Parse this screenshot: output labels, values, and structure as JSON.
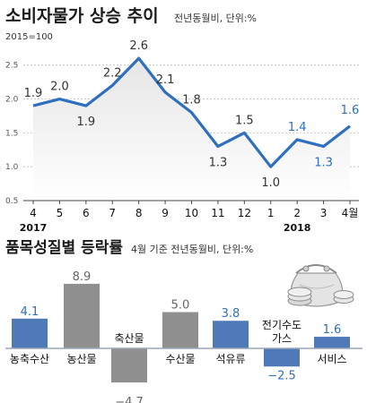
{
  "chart_data": [
    {
      "type": "line",
      "title": "소비자물가 상승 추이",
      "subtitle": "전년동월비, 단위:%",
      "base_note": "2015=100",
      "x": [
        "4",
        "5",
        "6",
        "7",
        "8",
        "9",
        "10",
        "11",
        "12",
        "1",
        "2",
        "3",
        "4월"
      ],
      "year_labels": [
        {
          "text": "2017",
          "at": "4"
        },
        {
          "text": "2018",
          "at": "2"
        }
      ],
      "values": [
        1.9,
        2.0,
        1.9,
        2.2,
        2.6,
        2.1,
        1.8,
        1.3,
        1.5,
        1.0,
        1.4,
        1.3,
        1.6
      ],
      "value_labels": [
        "1.9",
        "2.0",
        "1.9",
        "2.2",
        "2.6",
        "2.1",
        "1.8",
        "1.3",
        "1.5",
        "1.0",
        "1.4",
        "1.3",
        "1.6"
      ],
      "highlight_index": [
        10,
        11,
        12
      ],
      "yticks": [
        "2.5",
        "2.0",
        "1.5",
        "1.0",
        "0.5"
      ],
      "ylim": [
        0.5,
        2.8
      ],
      "grid": "horizontal-dashed",
      "colors": {
        "line": "#2f6fc0",
        "area_top": "#ececec",
        "area_bottom": "#ffffff"
      }
    },
    {
      "type": "bar",
      "title": "품목성질별 등락률",
      "subtitle": "4월 기준 전년동월비, 단위:%",
      "categories": [
        "농축수산",
        "농산물",
        "축산물",
        "수산물",
        "석유류",
        "전기수도 가스",
        "서비스"
      ],
      "values": [
        4.1,
        8.9,
        -4.7,
        5.0,
        3.8,
        -2.5,
        1.6
      ],
      "value_labels": [
        "4.1",
        "8.9",
        "−4.7",
        "5.0",
        "3.8",
        "−2.5",
        "1.6"
      ],
      "bar_style": [
        "blue",
        "grey",
        "grey",
        "grey",
        "blue",
        "blue",
        "blue"
      ],
      "colors": {
        "blue": "#4f79b7",
        "grey": "#8f8f8f",
        "baseline": "#9aa7b8"
      }
    }
  ]
}
